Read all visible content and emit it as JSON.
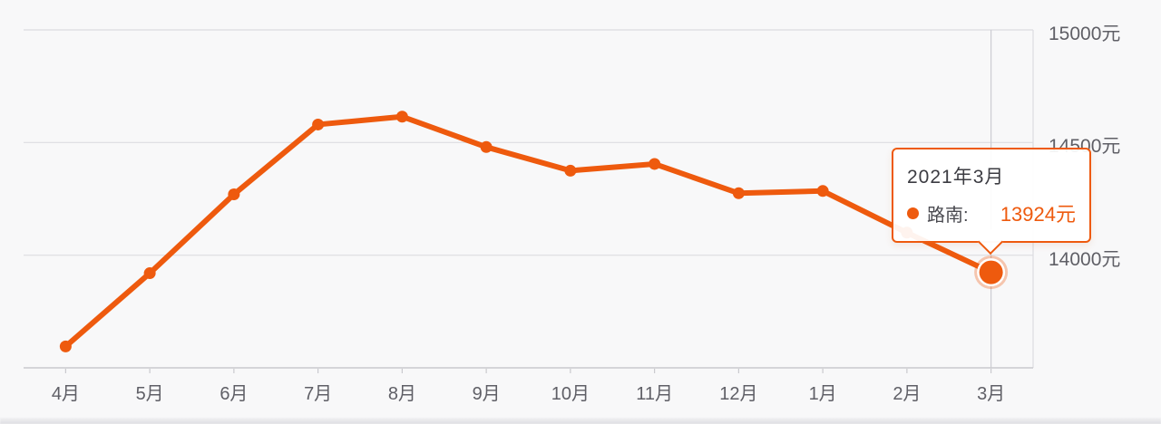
{
  "chart_data": {
    "type": "line",
    "title": "",
    "xlabel": "",
    "ylabel": "",
    "categories": [
      "4月",
      "5月",
      "6月",
      "7月",
      "8月",
      "9月",
      "10月",
      "11月",
      "12月",
      "1月",
      "2月",
      "3月"
    ],
    "series": [
      {
        "name": "路南",
        "values": [
          13595,
          13920,
          14270,
          14580,
          14615,
          14480,
          14375,
          14405,
          14275,
          14285,
          14100,
          13924
        ]
      }
    ],
    "ylim": [
      13500,
      15000
    ],
    "y_ticks": [
      {
        "value": 15000,
        "label": "15000元"
      },
      {
        "value": 14500,
        "label": "14500元"
      },
      {
        "value": 14000,
        "label": "14000元"
      }
    ],
    "grid": true,
    "legend_position": "none",
    "highlight_index": 11,
    "unit": "元"
  },
  "tooltip": {
    "title": "2021年3月",
    "series_label": "路南:",
    "value": "13924元"
  },
  "colors": {
    "accent": "#ee5a0e",
    "grid": "#dcdce0",
    "axis": "#c9c9ce",
    "axis_pointer": "#ccccd2",
    "label": "#5f5f66",
    "background": "#f8f8f9",
    "tooltip_title": "#3c3c42",
    "tooltip_name": "#4a4a50"
  }
}
